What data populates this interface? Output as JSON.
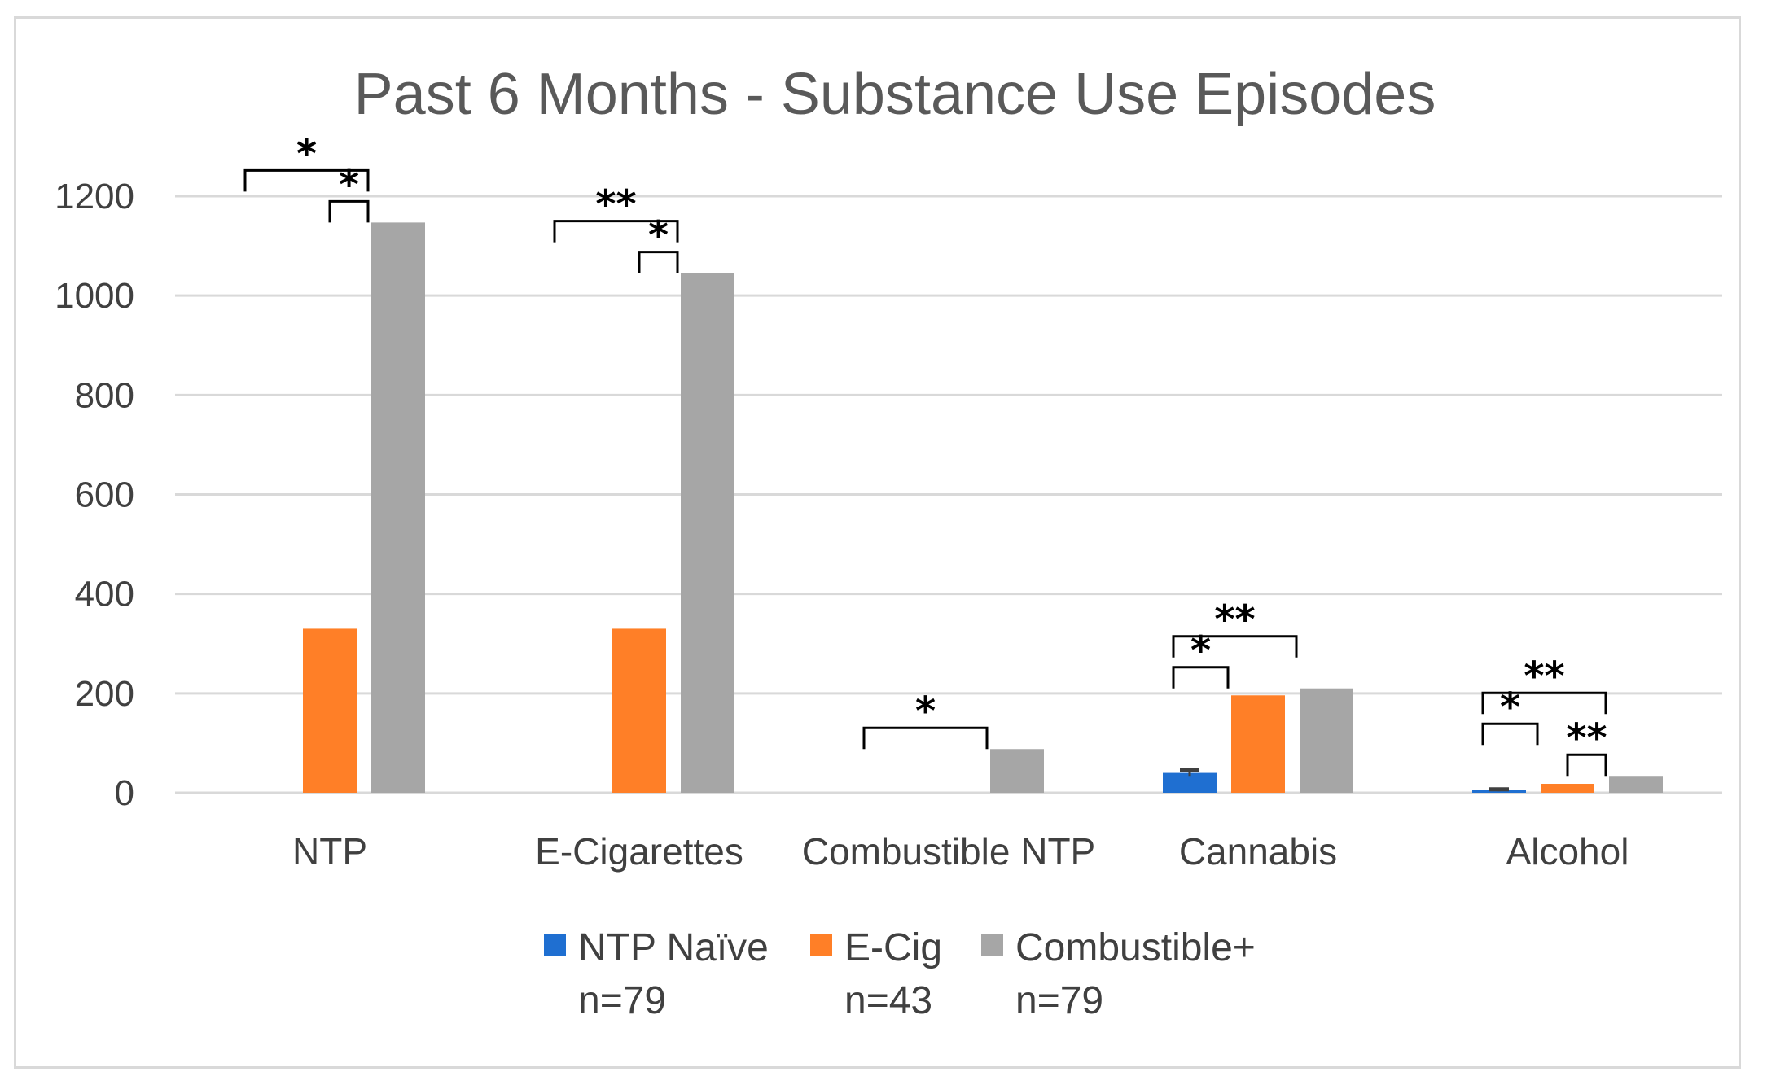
{
  "chart_data": {
    "type": "bar",
    "title": "Past 6 Months - Substance Use Episodes",
    "xlabel": "",
    "ylabel": "",
    "ylim": [
      0,
      1200
    ],
    "yticks": [
      0,
      200,
      400,
      600,
      800,
      1000,
      1200
    ],
    "grid": true,
    "legend_position": "bottom",
    "categories": [
      "NTP",
      "E-Cigarettes",
      "Combustible NTP",
      "Cannabis",
      "Alcohol"
    ],
    "series": [
      {
        "name": "NTP Naïve",
        "sample": "n=79",
        "color": "#1f6fd1",
        "values": [
          0,
          0,
          0,
          40,
          5
        ],
        "error": [
          0,
          0,
          0,
          6,
          2
        ]
      },
      {
        "name": "E-Cig",
        "sample": "n=43",
        "color": "#ff7f27",
        "values": [
          330,
          330,
          0,
          196,
          18
        ],
        "error": [
          0,
          0,
          0,
          0,
          0
        ]
      },
      {
        "name": "Combustible+",
        "sample": "n=79",
        "color": "#a6a6a6",
        "values": [
          1147,
          1045,
          88,
          210,
          34
        ],
        "error": [
          0,
          0,
          0,
          0,
          0
        ]
      }
    ],
    "annotations": [
      {
        "category": 0,
        "from_series": 0,
        "to_series": 2,
        "label": "*"
      },
      {
        "category": 0,
        "from_series": 1,
        "to_series": 2,
        "label": "*"
      },
      {
        "category": 1,
        "from_series": 0,
        "to_series": 2,
        "label": "**"
      },
      {
        "category": 1,
        "from_series": 1,
        "to_series": 2,
        "label": "*"
      },
      {
        "category": 2,
        "from_series": 0,
        "to_series": 2,
        "label": "*"
      },
      {
        "category": 3,
        "from_series": 0,
        "to_series": 2,
        "label": "**"
      },
      {
        "category": 3,
        "from_series": 0,
        "to_series": 1,
        "label": "*"
      },
      {
        "category": 4,
        "from_series": 0,
        "to_series": 2,
        "label": "**"
      },
      {
        "category": 4,
        "from_series": 1,
        "to_series": 2,
        "label": "**"
      },
      {
        "category": 4,
        "from_series": 0,
        "to_series": 1,
        "label": "*"
      }
    ]
  }
}
